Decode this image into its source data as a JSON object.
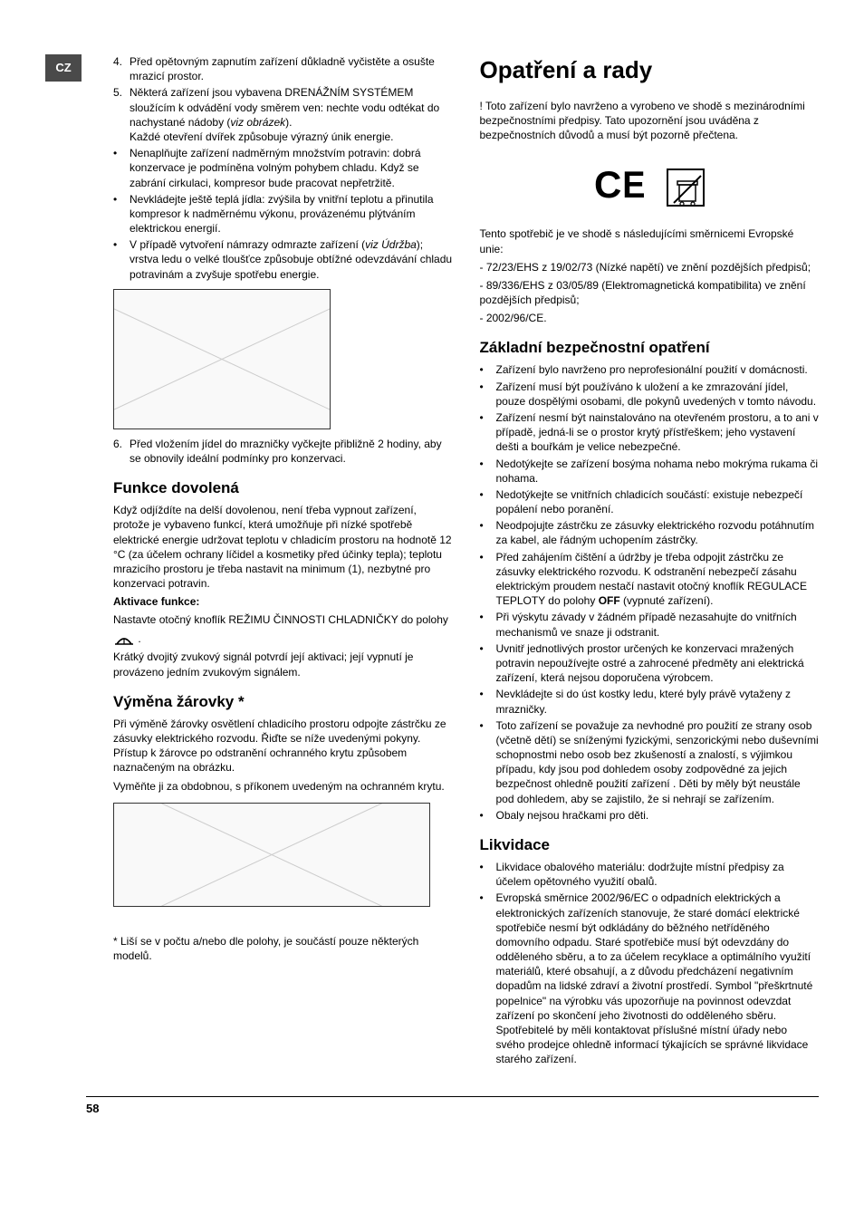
{
  "lang_badge": "CZ",
  "page_number": "58",
  "left": {
    "numbered_a": [
      {
        "n": "4.",
        "text": "Před opětovným zapnutím zařízení důkladně vyčistěte a osušte mrazicí prostor."
      },
      {
        "n": "5.",
        "text_pre": "Některá zařízení jsou vybavena DRENÁŽNÍM SYSTÉMEM sloužícím k odvádění vody směrem ven: nechte vodu odtékat do nachystané nádoby (",
        "text_italic": "viz obrázek",
        "text_post": ")."
      }
    ],
    "after_5": "Každé otevření dvířek způsobuje výrazný únik energie.",
    "bullets_a": [
      "Nenaplňujte zařízení nadměrným množstvím potravin: dobrá konzervace je podmíněna volným pohybem chladu. Když se zabrání cirkulaci, kompresor bude pracovat nepřetržitě.",
      "Nevkládejte ještě teplá jídla:  zvýšila by vnitřní teplotu a přinutila kompresor k nadměrnému výkonu, provázenému plýtváním elektrickou energií."
    ],
    "bullet_a_last_pre": "V případě vytvoření námrazy odmrazte zařízení (",
    "bullet_a_last_italic": "viz Údržba",
    "bullet_a_last_post": "); vrstva ledu o velké tloušťce způsobuje obtížné odevzdávání chladu potravinám a zvyšuje spotřebu energie.",
    "numbered_b": [
      {
        "n": "6.",
        "text": "Před vložením jídel do mrazničky vyčkejte přibližně 2 hodiny, aby se obnovily ideální podmínky pro konzervaci."
      }
    ],
    "h2_funkce": "Funkce dovolená",
    "funkce_para": "Když odjíždíte na delší dovolenou, není třeba vypnout zařízení, protože je vybaveno funkcí, která umožňuje při nízké spotřebě elektrické energie udržovat teplotu v chladicím prostoru na hodnotě 12 °C (za účelem ochrany líčidel a kosmetiky před účinky tepla); teplotu mrazicího prostoru je třeba nastavit na minimum (1), nezbytné pro konzervaci potravin.",
    "aktivace_label": "Aktivace funkce:",
    "aktivace_text": "Nastavte otočný knoflík REŽIMU ČINNOSTI CHLADNIČKY do polohy",
    "aktivace_after": "Krátký dvojitý zvukový signál potvrdí její aktivaci; její vypnutí je provázeno jedním zvukovým signálem.",
    "h2_vymena": "Výměna žárovky *",
    "vymena_para": "Při výměně žárovky osvětlení chladicího prostoru odpojte zástrčku ze zásuvky elektrického rozvodu. Řiďte se níže uvedenými pokyny. Přístup k žárovce po odstranění ochranného krytu způsobem naznačeným na obrázku.",
    "vymena_para2": "Vyměňte ji za obdobnou, s příkonem uvedeným na ochranném krytu.",
    "footnote": "* Liší se v počtu a/nebo dle polohy, je součástí pouze některých modelů."
  },
  "right": {
    "h1": "Opatření a rady",
    "intro": "! Toto zařízení bylo navrženo a vyrobeno ve shodě s mezinárodními bezpečnostními předpisy. Tato upozornění jsou uváděna z bezpečnostních důvodů a musí být pozorně přečtena.",
    "compliance_intro": "Tento spotřebič je ve shodě s následujícími směrnicemi Evropské unie:",
    "compliance_lines": [
      "- 72/23/EHS z 19/02/73 (Nízké napětí) ve znění pozdějších předpisů;",
      "- 89/336/EHS z 03/05/89 (Elektromagnetická kompatibilita) ve znění pozdějších předpisů;",
      "- 2002/96/CE."
    ],
    "h2_zakladni": "Základní bezpečnostní opatření",
    "zakladni_bullets": [
      "Zařízení bylo navrženo pro neprofesionální použití v domácnosti.",
      "Zařízení musí být používáno k uložení a ke zmrazování jídel, pouze dospělými osobami, dle pokynů uvedených v tomto návodu.",
      "Zařízení nesmí být nainstalováno na otevřeném prostoru, a to ani v případě, jedná-li se o prostor krytý přístřeškem; jeho vystavení dešti a bouřkám je velice nebezpečné.",
      "Nedotýkejte se zařízení bosýma nohama nebo mokrýma rukama či nohama.",
      "Nedotýkejte se vnitřních chladicích součástí: existuje nebezpečí popálení nebo poranění.",
      "Neodpojujte zástrčku ze zásuvky elektrického rozvodu potáhnutím za kabel, ale řádným uchopením zástrčky.",
      "Před zahájením čištění a údržby je třeba odpojit zástrčku ze zásuvky elektrického rozvodu. K odstranění nebezpečí zásahu elektrickým proudem nestačí nastavit otočný knoflík REGULACE TEPLOTY do polohy OFF (vypnuté zařízení).",
      "Při výskytu závady v žádném případě nezasahujte do vnitřních mechanismů ve snaze ji odstranit.",
      "Uvnitř jednotlivých prostor určených ke konzervaci mražených potravin nepoužívejte ostré a zahrocené předměty ani elektrická zařízení, která nejsou doporučena výrobcem.",
      "Nevkládejte si do úst kostky ledu, které byly právě vytaženy z mrazničky.",
      "Toto zařízení se považuje za nevhodné pro použití ze strany osob  (včetně dětí) se sníženými fyzickými, senzorickými nebo duševními schopnostmi nebo osob bez zkušeností a znalostí, s výjimkou případu, kdy jsou pod dohledem osoby zodpovědné za jejich bezpečnost ohledně použití zařízení . Děti by měly být neustále pod dohledem, aby se zajistilo, že si nehrají se zařízením.",
      "Obaly nejsou hračkami pro děti."
    ],
    "h2_likvidace": "Likvidace",
    "likvidace_bullets": [
      "Likvidace obalového materiálu: dodržujte místní předpisy za účelem opětovného využití obalů.",
      "Evropská směrnice 2002/96/EC o odpadních elektrických a elektronických zařízeních stanovuje, že staré domácí elektrické spotřebiče nesmí být odkládány do běžného netříděného domovního odpadu. Staré spotřebiče musí být odevzdány do odděleného sběru, a to za účelem recyklace a optimálního využití materiálů, které obsahují, a z důvodu předcházení negativním dopadům na lidské zdraví a životní prostředí. Symbol \"přeškrtnuté popelnice\" na výrobku vás upozorňuje na povinnost odevzdat zařízení po skončení jeho životnosti do odděleného sběru. Spotřebitelé by měli kontaktovat příslušné místní úřady nebo svého prodejce ohledně informací týkajících se správné likvidace starého zařízení."
    ]
  },
  "off_bold": "OFF"
}
